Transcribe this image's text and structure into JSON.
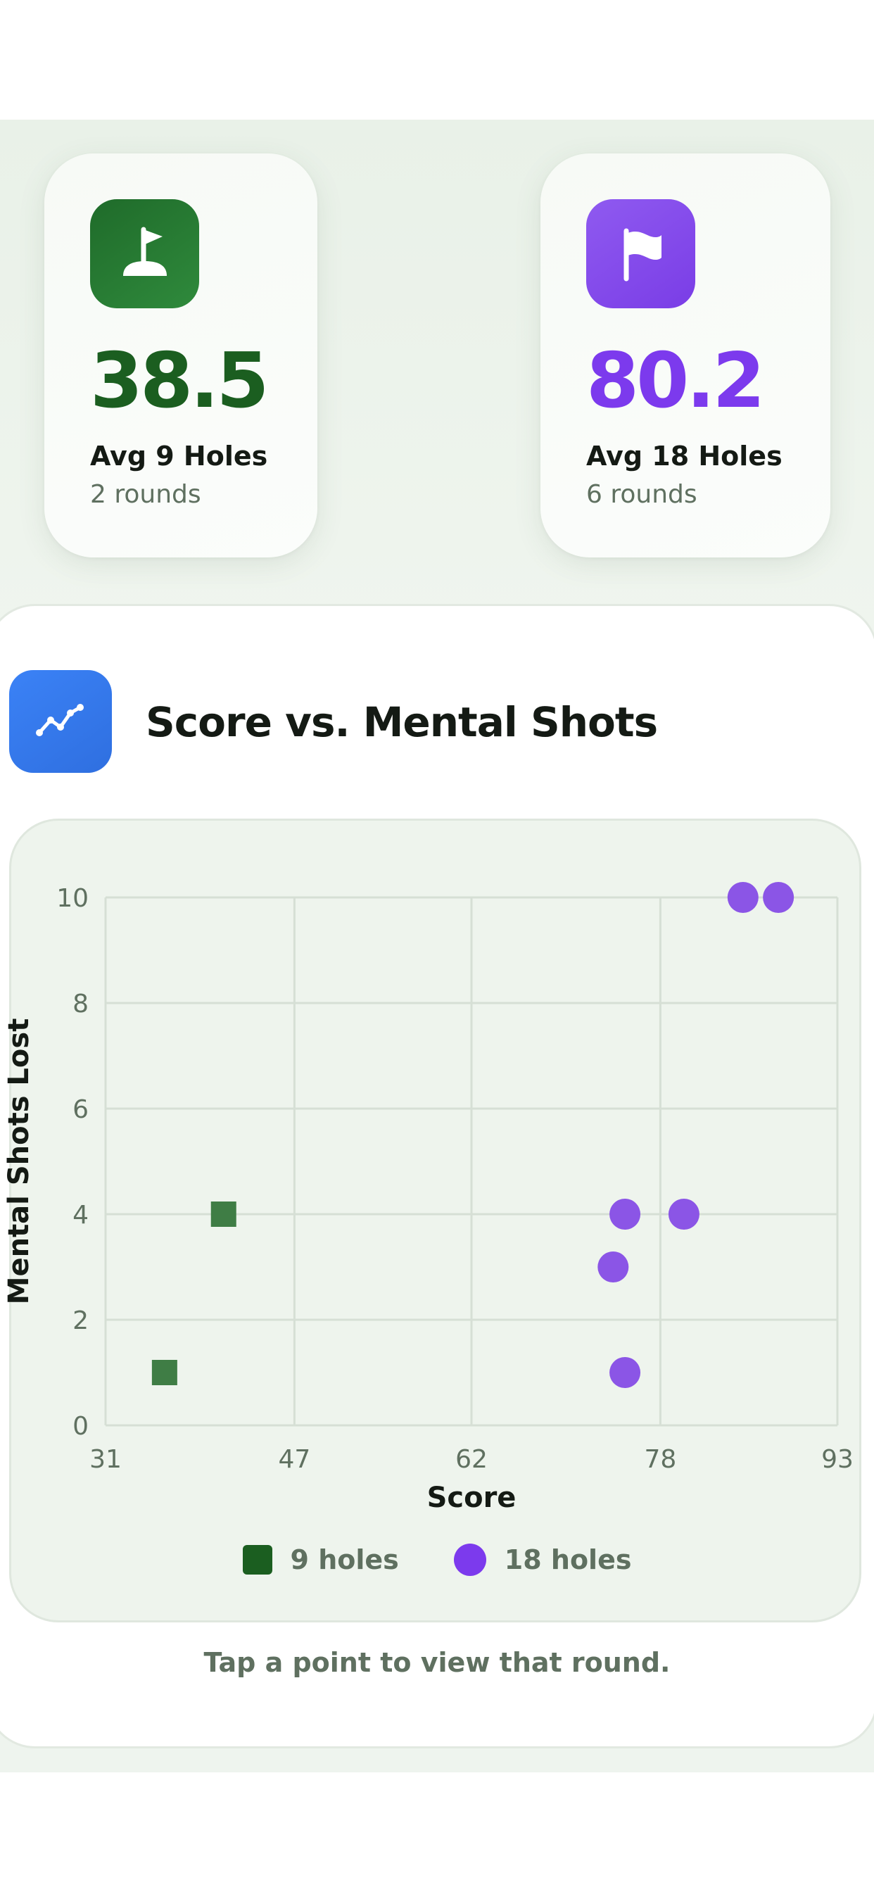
{
  "summary": {
    "nine_holes": {
      "icon": "golf-hole-flag-icon",
      "value": "38.5",
      "label": "Avg 9 Holes",
      "sub": "2 rounds",
      "color": "#1b5e20"
    },
    "eighteen_holes": {
      "icon": "flag-icon",
      "value": "80.2",
      "label": "Avg 18 Holes",
      "sub": "6 rounds",
      "color": "#7c3aed"
    }
  },
  "section": {
    "icon": "line-chart-icon",
    "title": "Score vs. Mental Shots"
  },
  "hint": "Tap a point to view that round.",
  "chart_data": {
    "type": "scatter",
    "title": "",
    "xlabel": "Score",
    "ylabel": "Mental Shots Lost",
    "xlim": [
      31,
      93
    ],
    "ylim": [
      0,
      10
    ],
    "x_ticks": [
      "31",
      "47",
      "62",
      "78",
      "93"
    ],
    "y_ticks": [
      "0",
      "2",
      "4",
      "6",
      "8",
      "10"
    ],
    "grid": true,
    "legend_position": "bottom",
    "series": [
      {
        "name": "9 holes",
        "marker": "square",
        "color": "#3f7d45",
        "legend_color": "#1b5e20",
        "points": [
          {
            "x": 36,
            "y": 1
          },
          {
            "x": 41,
            "y": 4
          }
        ]
      },
      {
        "name": "18 holes",
        "marker": "circle",
        "color": "#8b55e6",
        "legend_color": "#7c3aed",
        "points": [
          {
            "x": 75,
            "y": 1
          },
          {
            "x": 74,
            "y": 3
          },
          {
            "x": 75,
            "y": 4
          },
          {
            "x": 80,
            "y": 4
          },
          {
            "x": 85,
            "y": 10
          },
          {
            "x": 88,
            "y": 10
          }
        ]
      }
    ]
  }
}
